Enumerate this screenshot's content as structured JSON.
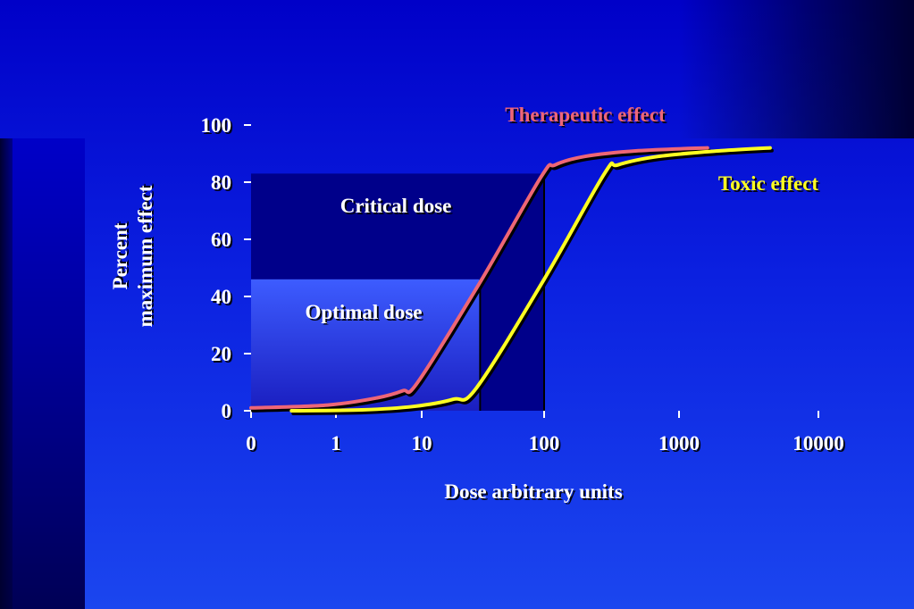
{
  "chart_data": {
    "type": "line",
    "x_scale": "log",
    "xlabel": "Dose arbitrary units",
    "ylabel": [
      "Percent",
      "maximum effect"
    ],
    "x_ticks": [
      "0",
      "1",
      "10",
      "100",
      "1000",
      "10000"
    ],
    "y_ticks": [
      "0",
      "20",
      "40",
      "60",
      "80",
      "100"
    ],
    "ylim": [
      0,
      100
    ],
    "grid": false,
    "series": [
      {
        "name": "Therapeutic effect",
        "color": "#ee6677",
        "points": [
          [
            0.1,
            1
          ],
          [
            0.8,
            2
          ],
          [
            3,
            4.5
          ],
          [
            6,
            7
          ],
          [
            9,
            10
          ],
          [
            30,
            45
          ],
          [
            95,
            82
          ],
          [
            120,
            86
          ],
          [
            200,
            89
          ],
          [
            500,
            91
          ],
          [
            1600,
            92
          ]
        ]
      },
      {
        "name": "Toxic effect",
        "color": "#ffff22",
        "points": [
          [
            0.3,
            0
          ],
          [
            2,
            0.3
          ],
          [
            8,
            1.5
          ],
          [
            18,
            4
          ],
          [
            28,
            8
          ],
          [
            100,
            46
          ],
          [
            280,
            83
          ],
          [
            350,
            86
          ],
          [
            700,
            89
          ],
          [
            2000,
            91
          ],
          [
            4500,
            92
          ]
        ]
      }
    ],
    "regions": [
      {
        "label": "Critical dose",
        "x_end": 100,
        "y_top": 83
      },
      {
        "label": "Optimal dose",
        "x_end": 30,
        "y_top": 46
      }
    ]
  }
}
